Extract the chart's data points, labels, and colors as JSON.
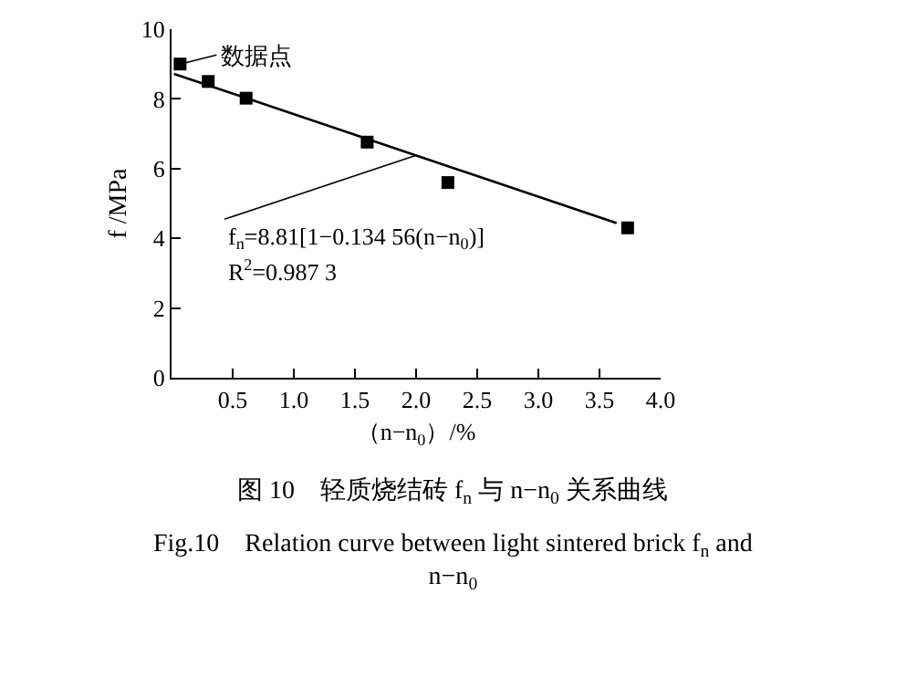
{
  "chart_data": {
    "type": "scatter",
    "title": "图 10　轻质烧结砖 f$_{n}$ 与 n−n$_{0}$ 关系曲线",
    "subtitle": "Fig.10　Relation curve between light sintered brick f$_{n}$ and\nn−n$_{0}$",
    "xlabel": "（n−n$_{0}$）/%",
    "ylabel": "f /MPa",
    "x": [
      0.07,
      0.3,
      0.61,
      1.6,
      2.26,
      3.73
    ],
    "series": [
      {
        "color": "#000000",
        "marker": "square",
        "values": [
          9.0,
          8.5,
          8.02,
          6.76,
          5.6,
          4.3
        ]
      },
      {
        "type": "line",
        "color": "#000000",
        "marker": "none",
        "line_style": "solid",
        "x": [
          0.02,
          3.64
        ],
        "values": [
          8.72,
          4.44
        ]
      }
    ],
    "annotations": [
      {
        "text": "数据点",
        "x": 0.07,
        "y": 9.0
      },
      {
        "text": "f$_{n}$=8.81[1−0.134 56(n−n$_{0}$)]",
        "x": 2.0,
        "y": 6.38
      },
      "R$^{2}$=0.987 3"
    ],
    "xlim": [
      0,
      4.0
    ],
    "ylim": [
      0,
      10
    ],
    "xticks": [
      {
        "value": 0.5,
        "label": "0.5"
      },
      {
        "value": 1.0,
        "label": "1.0"
      },
      {
        "value": 1.5,
        "label": "1.5"
      },
      {
        "value": 2.0,
        "label": "2.0"
      },
      {
        "value": 2.5,
        "label": "2.5"
      },
      {
        "value": 3.0,
        "label": "3.0"
      },
      {
        "value": 3.5,
        "label": "3.5"
      },
      {
        "value": 4.0,
        "label": "4.0"
      }
    ],
    "yticks": [
      0,
      2,
      4,
      6,
      8,
      10
    ]
  }
}
